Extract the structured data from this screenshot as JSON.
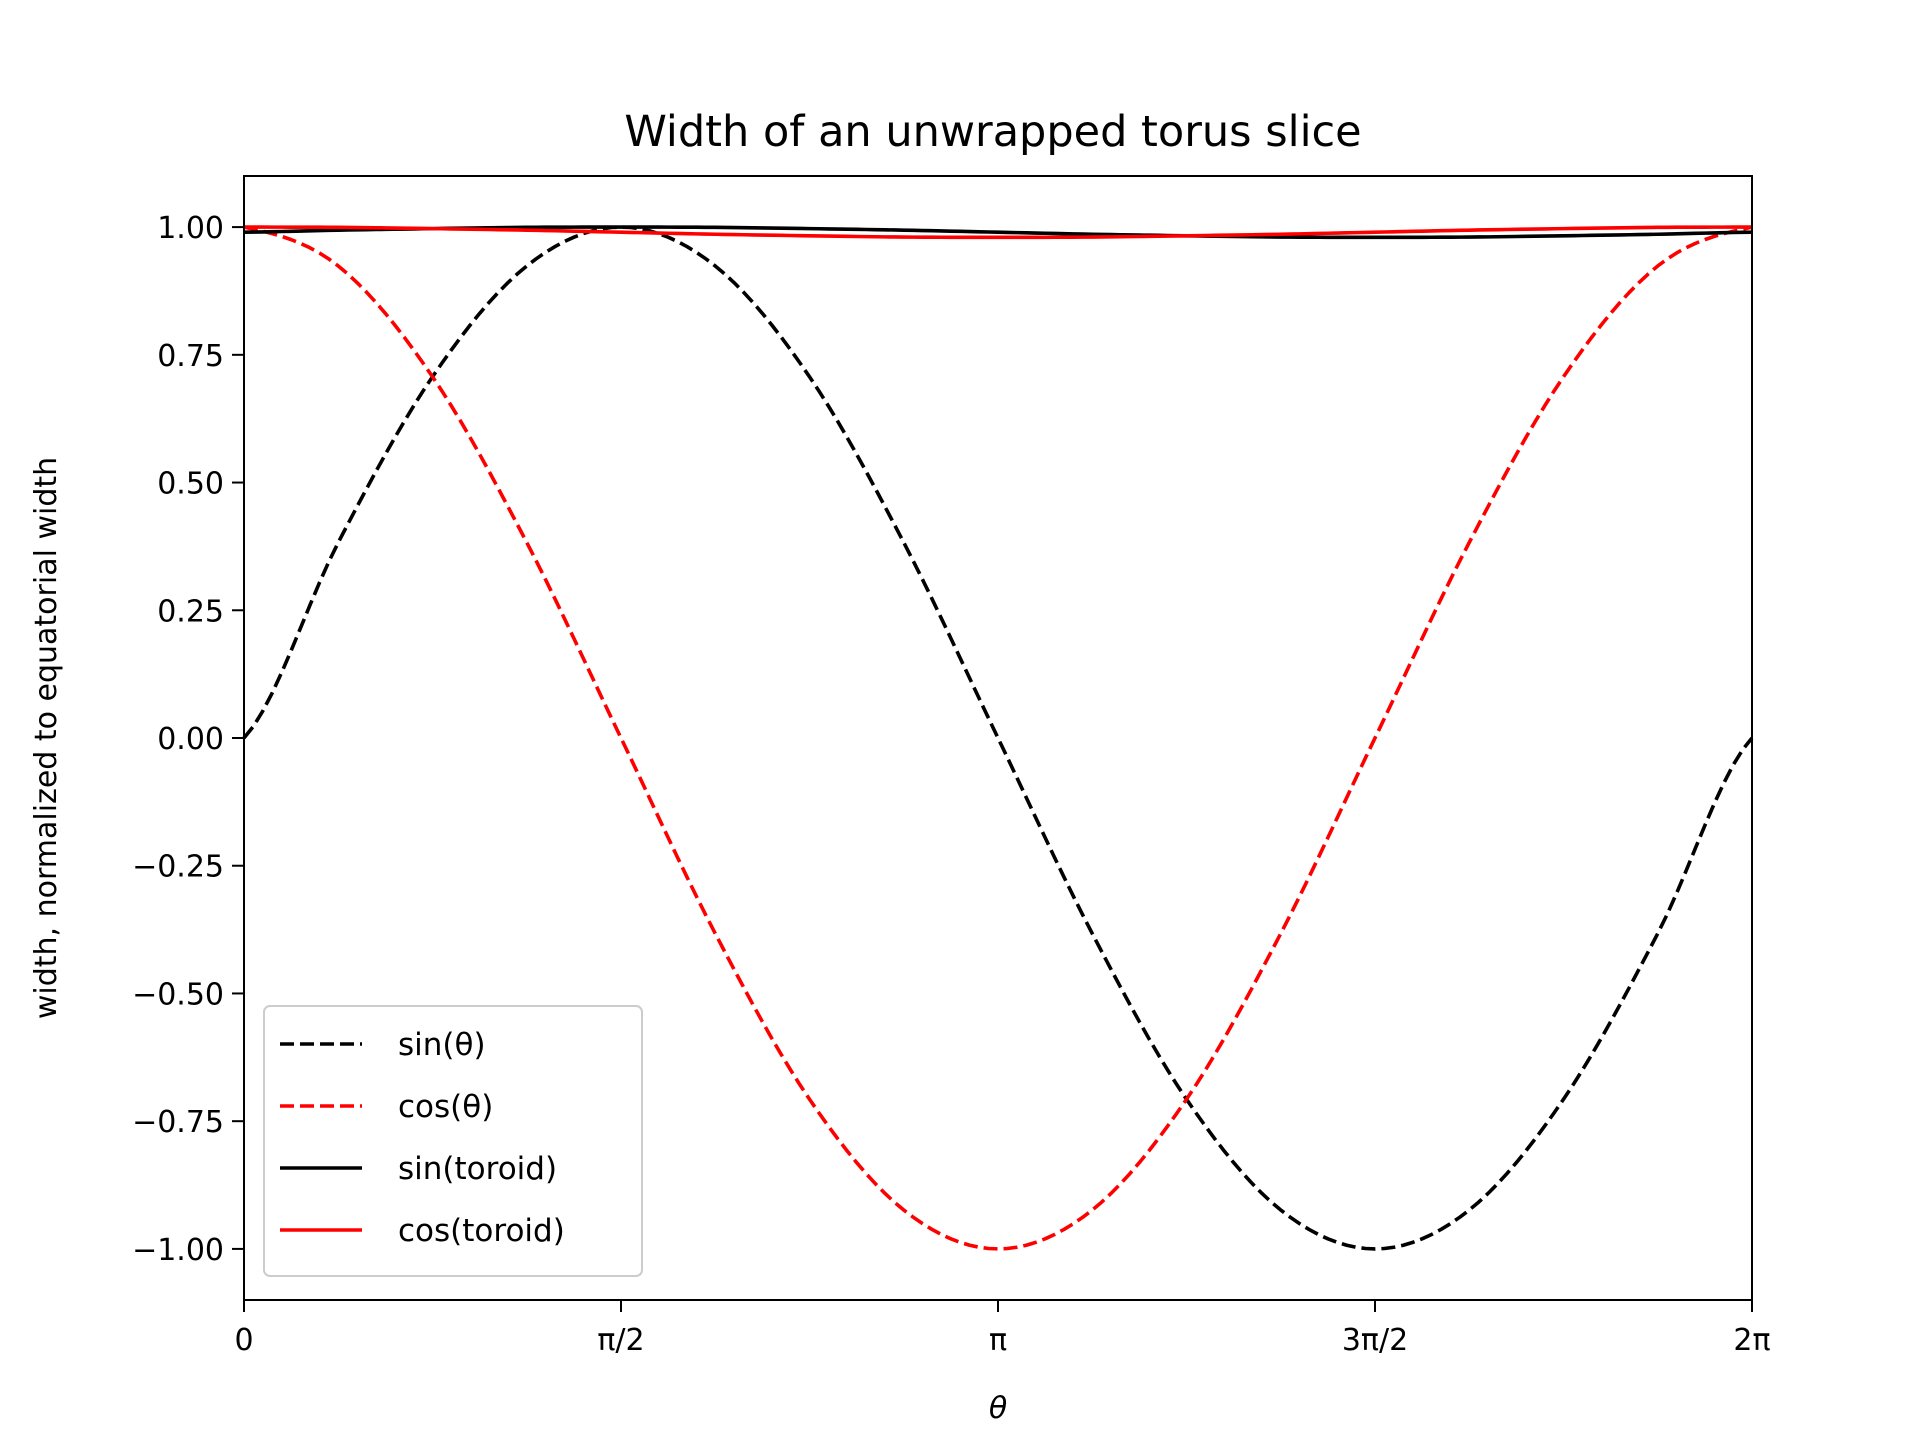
{
  "chart_data": {
    "type": "line",
    "title": "Width of an unwrapped torus slice",
    "xlabel": "θ",
    "ylabel": "width, normalized to equatorial width",
    "xlim": [
      0,
      6.283185307179586
    ],
    "ylim": [
      -1.1,
      1.1
    ],
    "x_ticks": [
      {
        "value": 0,
        "label": "0"
      },
      {
        "value": 1.5707963267948966,
        "label": "π/2"
      },
      {
        "value": 3.141592653589793,
        "label": "π"
      },
      {
        "value": 4.71238898038469,
        "label": "3π/2"
      },
      {
        "value": 6.283185307179586,
        "label": "2π"
      }
    ],
    "y_ticks": [
      {
        "value": 1.0,
        "label": "1.00"
      },
      {
        "value": 0.75,
        "label": "0.75"
      },
      {
        "value": 0.5,
        "label": "0.50"
      },
      {
        "value": 0.25,
        "label": "0.25"
      },
      {
        "value": 0.0,
        "label": "0.00"
      },
      {
        "value": -0.25,
        "label": "−0.25"
      },
      {
        "value": -0.5,
        "label": "−0.50"
      },
      {
        "value": -0.75,
        "label": "−0.75"
      },
      {
        "value": -1.0,
        "label": "−1.00"
      }
    ],
    "grid": false,
    "legend_position": "lower-left",
    "x": [
      0,
      0.3927,
      0.7854,
      1.1781,
      1.5708,
      1.9635,
      2.3562,
      2.7489,
      3.1416,
      3.5343,
      3.927,
      4.3197,
      4.7124,
      5.1051,
      5.4978,
      5.8905,
      6.2832
    ],
    "series": [
      {
        "name": "sin(θ)",
        "color": "#000000",
        "dash": "dashed",
        "values": [
          0,
          0.3827,
          0.7071,
          0.9239,
          1.0,
          0.9239,
          0.7071,
          0.3827,
          0,
          -0.3827,
          -0.7071,
          -0.9239,
          -1.0,
          -0.9239,
          -0.7071,
          -0.3827,
          0
        ]
      },
      {
        "name": "cos(θ)",
        "color": "#ff0000",
        "dash": "dashed",
        "values": [
          1.0,
          0.9239,
          0.7071,
          0.3827,
          0,
          -0.3827,
          -0.7071,
          -0.9239,
          -1.0,
          -0.9239,
          -0.7071,
          -0.3827,
          0,
          0.3827,
          0.7071,
          0.9239,
          1.0
        ]
      },
      {
        "name": "sin(toroid)",
        "color": "#000000",
        "dash": "solid",
        "values": [
          0.99,
          0.994,
          0.997,
          0.9995,
          1.0,
          0.9995,
          0.997,
          0.994,
          0.99,
          0.986,
          0.983,
          0.9805,
          0.98,
          0.9805,
          0.983,
          0.986,
          0.99
        ]
      },
      {
        "name": "cos(toroid)",
        "color": "#ff0000",
        "dash": "solid",
        "values": [
          1.0,
          0.9995,
          0.997,
          0.994,
          0.99,
          0.986,
          0.983,
          0.9805,
          0.98,
          0.9805,
          0.983,
          0.986,
          0.99,
          0.994,
          0.997,
          0.9995,
          1.0
        ]
      }
    ]
  }
}
